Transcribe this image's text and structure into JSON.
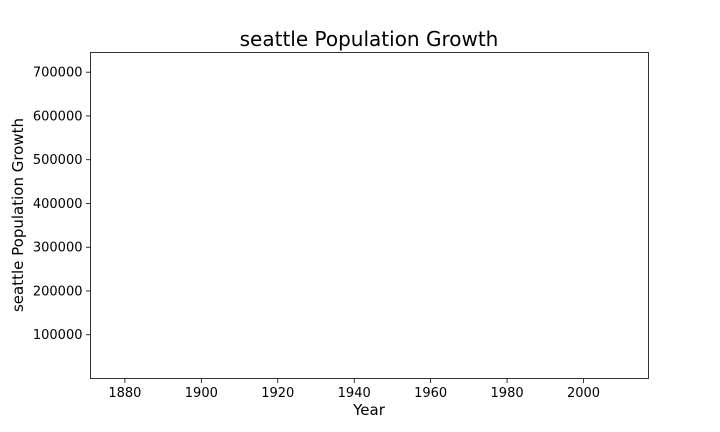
{
  "chart_data": {
    "type": "line",
    "title": "seattle Population Growth",
    "xlabel": "Year",
    "ylabel": "seattle Population Growth",
    "xlim": [
      1871,
      2017
    ],
    "ylim": [
      0,
      745000
    ],
    "x_ticks": [
      1880,
      1900,
      1920,
      1940,
      1960,
      1980,
      2000
    ],
    "y_ticks": [
      100000,
      200000,
      300000,
      400000,
      500000,
      600000,
      700000
    ],
    "x_tick_labels": [
      "1880",
      "1900",
      "1920",
      "1940",
      "1960",
      "1980",
      "2000"
    ],
    "y_tick_labels": [
      "100000",
      "200000",
      "300000",
      "400000",
      "500000",
      "600000",
      "700000"
    ],
    "series": [],
    "grid": false
  }
}
